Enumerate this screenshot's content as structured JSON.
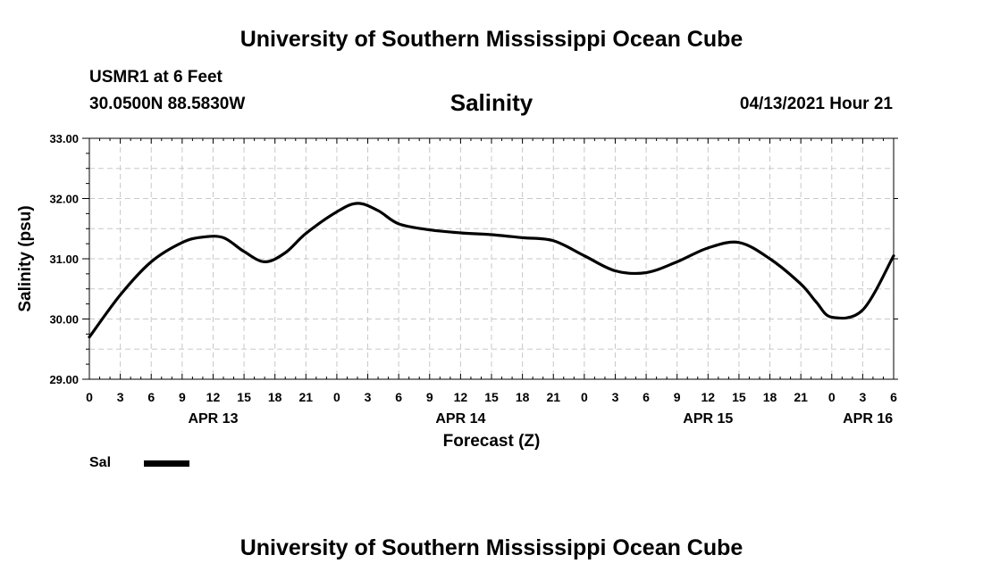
{
  "header": {
    "title": "University of Southern Mississippi Ocean Cube",
    "station": "USMR1 at 6 Feet",
    "coords": "30.0500N  88.5830W",
    "variable": "Salinity",
    "run_time": "04/13/2021 Hour 21"
  },
  "footer": {
    "title": "University of Southern Mississippi Ocean Cube"
  },
  "legend": {
    "label": "Sal"
  },
  "chart_data": {
    "type": "line",
    "title": "Salinity",
    "xlabel": "Forecast (Z)",
    "ylabel": "Salinity (psu)",
    "ylim": [
      29,
      33
    ],
    "xlim": [
      0,
      78
    ],
    "x_unit": "hours from APR 13 00Z",
    "y_ticks": [
      "29.00",
      "30.00",
      "31.00",
      "32.00",
      "33.00"
    ],
    "x_tick_labels": [
      "0",
      "3",
      "6",
      "9",
      "12",
      "15",
      "18",
      "21",
      "0",
      "3",
      "6",
      "9",
      "12",
      "15",
      "18",
      "21",
      "0",
      "3",
      "6",
      "9",
      "12",
      "15",
      "18",
      "21",
      "0",
      "3",
      "6"
    ],
    "date_labels": [
      {
        "label": "APR 13",
        "hour": 12
      },
      {
        "label": "APR 14",
        "hour": 36
      },
      {
        "label": "APR 15",
        "hour": 60
      },
      {
        "label": "APR 16",
        "hour": 75.5
      }
    ],
    "grid": true,
    "series": [
      {
        "name": "Sal",
        "color": "#000000",
        "x": [
          0,
          3,
          6,
          9,
          11,
          13,
          15,
          17,
          19,
          21,
          24,
          26,
          28,
          30,
          33,
          36,
          39,
          42,
          45,
          48,
          51,
          54,
          57,
          60,
          63,
          66,
          69,
          70.5,
          72,
          75,
          78
        ],
        "values": [
          29.7,
          30.4,
          30.95,
          31.27,
          31.36,
          31.35,
          31.12,
          30.95,
          31.1,
          31.42,
          31.78,
          31.92,
          31.8,
          31.58,
          31.48,
          31.43,
          31.4,
          31.35,
          31.3,
          31.05,
          30.8,
          30.77,
          30.95,
          31.18,
          31.27,
          31.0,
          30.58,
          30.28,
          30.03,
          30.15,
          31.05
        ]
      }
    ]
  }
}
